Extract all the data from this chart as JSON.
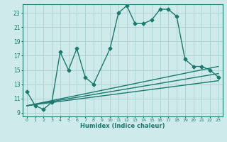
{
  "title": "",
  "xlabel": "Humidex (Indice chaleur)",
  "ylabel": "",
  "bg_color": "#ceeaea",
  "line_color": "#1a7a6e",
  "grid_color": "#aed4d4",
  "xlim": [
    -0.5,
    23.5
  ],
  "ylim": [
    8.5,
    24.2
  ],
  "yticks": [
    9,
    11,
    13,
    15,
    17,
    19,
    21,
    23
  ],
  "xticks": [
    0,
    1,
    2,
    3,
    4,
    5,
    6,
    7,
    8,
    9,
    10,
    11,
    12,
    13,
    14,
    15,
    16,
    17,
    18,
    19,
    20,
    21,
    22,
    23
  ],
  "main_line_x": [
    0,
    1,
    2,
    3,
    4,
    5,
    6,
    7,
    8,
    10,
    11,
    12,
    13,
    14,
    15,
    16,
    17,
    18,
    19,
    20,
    21,
    22,
    23
  ],
  "main_line_y": [
    12.0,
    10.0,
    9.5,
    10.5,
    17.5,
    15.0,
    18.0,
    14.0,
    13.0,
    18.0,
    23.0,
    24.0,
    21.5,
    21.5,
    22.0,
    23.5,
    23.5,
    22.5,
    16.5,
    15.5,
    15.5,
    15.0,
    14.0
  ],
  "line2_x": [
    0,
    23
  ],
  "line2_y": [
    10.0,
    15.5
  ],
  "line3_x": [
    0,
    23
  ],
  "line3_y": [
    10.0,
    14.5
  ],
  "line4_x": [
    0,
    23
  ],
  "line4_y": [
    10.0,
    13.5
  ],
  "marker": "D",
  "markersize": 2.5,
  "linewidth": 1.0
}
